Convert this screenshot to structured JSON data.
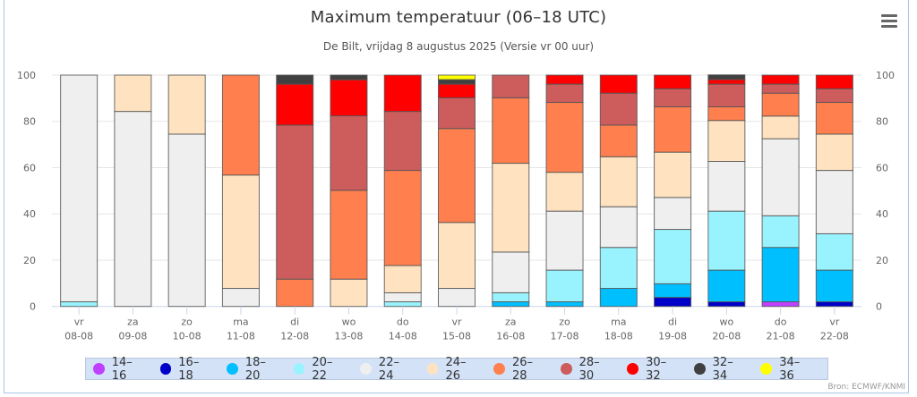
{
  "header": {
    "title": "Maximum temperatuur (06–18 UTC)",
    "subtitle": "De Bilt, vrijdag 8 augustus 2025 (Versie vr 00 uur)",
    "menu_icon": "hamburger-menu-icon"
  },
  "credit": "Bron: ECMWF/KNMI",
  "chart_data": {
    "type": "bar",
    "stacked": true,
    "title": "Maximum temperatuur (06–18 UTC)",
    "subtitle": "De Bilt, vrijdag 8 augustus 2025 (Versie vr 00 uur)",
    "xlabel": "",
    "ylabel": "",
    "ylim": [
      0,
      100
    ],
    "yticks": [
      0,
      20,
      40,
      60,
      80,
      100
    ],
    "grid": true,
    "legend_position": "bottom",
    "categories": [
      {
        "day": "vr",
        "date": "08-08"
      },
      {
        "day": "za",
        "date": "09-08"
      },
      {
        "day": "zo",
        "date": "10-08"
      },
      {
        "day": "ma",
        "date": "11-08"
      },
      {
        "day": "di",
        "date": "12-08"
      },
      {
        "day": "wo",
        "date": "13-08"
      },
      {
        "day": "do",
        "date": "14-08"
      },
      {
        "day": "vr",
        "date": "15-08"
      },
      {
        "day": "za",
        "date": "16-08"
      },
      {
        "day": "zo",
        "date": "17-08"
      },
      {
        "day": "ma",
        "date": "18-08"
      },
      {
        "day": "di",
        "date": "19-08"
      },
      {
        "day": "wo",
        "date": "20-08"
      },
      {
        "day": "do",
        "date": "21-08"
      },
      {
        "day": "vr",
        "date": "22-08"
      }
    ],
    "series": [
      {
        "name": "14–16",
        "color": "#bf40ff",
        "values": [
          0,
          0,
          0,
          0,
          0,
          0,
          0,
          0,
          0,
          0,
          0,
          0,
          0,
          2.0,
          0
        ]
      },
      {
        "name": "16–18",
        "color": "#0000c8",
        "values": [
          0,
          0,
          0,
          0,
          0,
          0,
          0,
          0,
          0,
          0,
          0,
          3.9,
          2.0,
          0,
          2.0
        ]
      },
      {
        "name": "18–20",
        "color": "#00bfff",
        "values": [
          0,
          0,
          0,
          0,
          0,
          0,
          0,
          0,
          2.0,
          2.0,
          7.8,
          5.9,
          13.7,
          23.5,
          13.7
        ]
      },
      {
        "name": "20–22",
        "color": "#99f3ff",
        "values": [
          2.0,
          0,
          0,
          0,
          0,
          0,
          2.0,
          0,
          3.9,
          13.7,
          17.7,
          23.5,
          25.5,
          13.7,
          15.7
        ]
      },
      {
        "name": "22–24",
        "color": "#efefef",
        "values": [
          98.0,
          84.3,
          74.5,
          7.8,
          0,
          0,
          3.9,
          7.8,
          17.6,
          25.5,
          17.6,
          13.8,
          21.5,
          33.3,
          27.4
        ]
      },
      {
        "name": "24–26",
        "color": "#ffe2c0",
        "values": [
          0,
          15.7,
          25.5,
          49.0,
          0,
          11.8,
          11.8,
          28.5,
          38.4,
          16.8,
          21.6,
          19.6,
          17.7,
          9.8,
          15.7
        ]
      },
      {
        "name": "26–28",
        "color": "#ff7f4f",
        "values": [
          0,
          0,
          0,
          43.2,
          11.8,
          38.4,
          41.1,
          40.6,
          28.3,
          30.2,
          13.7,
          19.6,
          5.9,
          9.9,
          13.7
        ]
      },
      {
        "name": "28–30",
        "color": "#cd5c5c",
        "values": [
          0,
          0,
          0,
          0,
          66.6,
          32.2,
          25.5,
          13.3,
          9.8,
          7.9,
          13.8,
          7.8,
          9.8,
          3.9,
          5.9
        ]
      },
      {
        "name": "30–32",
        "color": "#ff0000",
        "values": [
          0,
          0,
          0,
          0,
          17.7,
          15.6,
          15.7,
          5.9,
          0,
          3.9,
          7.8,
          5.9,
          2.0,
          3.9,
          5.9
        ]
      },
      {
        "name": "32–34",
        "color": "#404040",
        "values": [
          0,
          0,
          0,
          0,
          3.9,
          2.0,
          0,
          1.95,
          0,
          0,
          0,
          0,
          2.0,
          0,
          0
        ]
      },
      {
        "name": "34–36",
        "color": "#ffff00",
        "values": [
          0,
          0,
          0,
          0,
          0,
          0,
          0,
          1.95,
          0,
          0,
          0,
          0,
          0,
          0,
          0
        ]
      }
    ]
  }
}
